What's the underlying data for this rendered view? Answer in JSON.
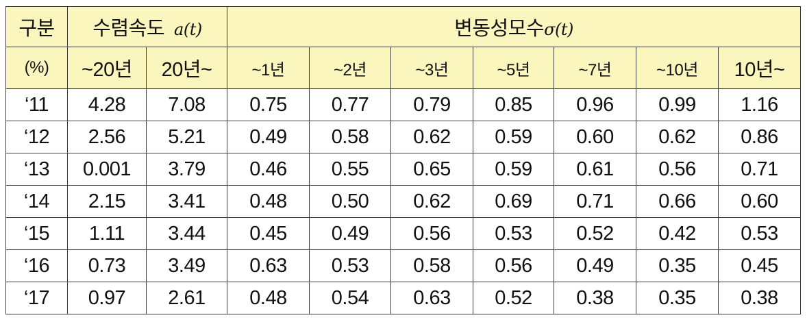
{
  "header": {
    "category": "구분",
    "unit": "(%)",
    "convergence": {
      "label": "수렴속도",
      "symbol": "a(t)"
    },
    "volatility": {
      "label": "변동성모수",
      "symbol": "σ(t)"
    },
    "convergence_cols": [
      "~20년",
      "20년~"
    ],
    "volatility_cols": [
      "~1년",
      "~2년",
      "~3년",
      "~5년",
      "~7년",
      "~10년",
      "10년~"
    ]
  },
  "rows": [
    {
      "year": "‘11",
      "values": [
        "4.28",
        "7.08",
        "0.75",
        "0.77",
        "0.79",
        "0.85",
        "0.96",
        "0.99",
        "1.16"
      ]
    },
    {
      "year": "‘12",
      "values": [
        "2.56",
        "5.21",
        "0.49",
        "0.58",
        "0.62",
        "0.59",
        "0.60",
        "0.62",
        "0.86"
      ]
    },
    {
      "year": "‘13",
      "values": [
        "0.001",
        "3.79",
        "0.46",
        "0.55",
        "0.65",
        "0.59",
        "0.61",
        "0.56",
        "0.71"
      ]
    },
    {
      "year": "‘14",
      "values": [
        "2.15",
        "3.41",
        "0.48",
        "0.50",
        "0.62",
        "0.69",
        "0.71",
        "0.66",
        "0.60"
      ]
    },
    {
      "year": "‘15",
      "values": [
        "1.11",
        "3.44",
        "0.45",
        "0.49",
        "0.56",
        "0.53",
        "0.52",
        "0.42",
        "0.53"
      ]
    },
    {
      "year": "‘16",
      "values": [
        "0.73",
        "3.49",
        "0.63",
        "0.53",
        "0.58",
        "0.56",
        "0.49",
        "0.35",
        "0.45"
      ]
    },
    {
      "year": "‘17",
      "values": [
        "0.97",
        "2.61",
        "0.48",
        "0.54",
        "0.63",
        "0.52",
        "0.38",
        "0.35",
        "0.38"
      ]
    }
  ],
  "colors": {
    "header_bg": "#fbf6bd",
    "border": "#3a3a3a"
  }
}
